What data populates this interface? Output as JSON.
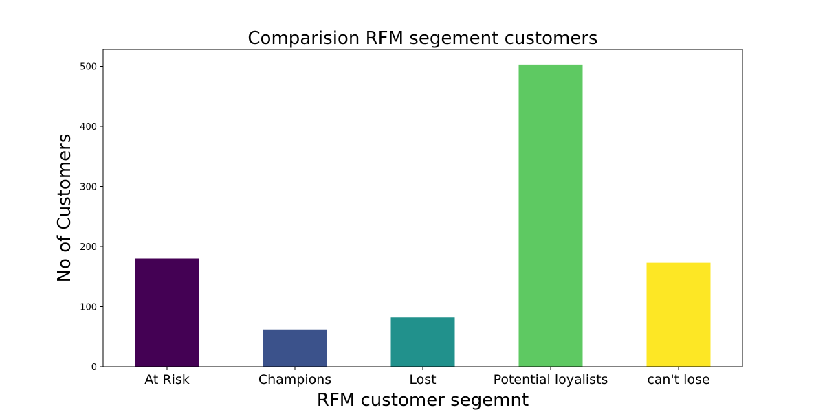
{
  "chart_data": {
    "type": "bar",
    "title": "Comparision RFM segement customers",
    "xlabel": "RFM customer segemnt",
    "ylabel": "No of Customers",
    "categories": [
      "At Risk",
      "Champions",
      "Lost",
      "Potential loyalists",
      "can't lose"
    ],
    "values": [
      180,
      62,
      82,
      503,
      173
    ],
    "colors": [
      "#440154",
      "#3b528b",
      "#21918c",
      "#5ec962",
      "#fde725"
    ],
    "ylim": [
      0,
      528
    ],
    "yticks": [
      0,
      100,
      200,
      300,
      400,
      500
    ],
    "grid": false,
    "legend": "none"
  }
}
